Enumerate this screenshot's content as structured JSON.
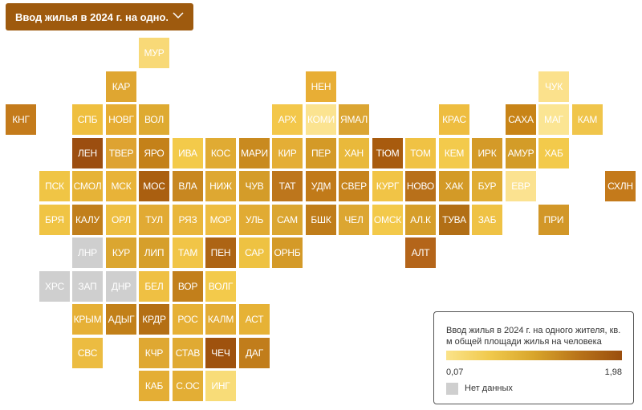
{
  "dropdown": {
    "label": "Ввод жилья в 2024 г. на одно..."
  },
  "legend": {
    "title": "Ввод жилья в 2024 г. на одного жителя, кв. м общей площади жилья на человека",
    "min": "0,07",
    "max": "1,98",
    "no_data": "Нет данных",
    "gradient_colors": [
      "#fbe38a",
      "#f0c94c",
      "#d8a52b",
      "#b9741a",
      "#9a4e0d"
    ],
    "no_data_color": "#cfcfcf"
  },
  "regions": [
    {
      "label": "МУР",
      "color": "#f8d977"
    },
    {
      "label": "КАР",
      "color": "#dfa631"
    },
    {
      "label": "НЕН",
      "color": "#e8ae35"
    },
    {
      "label": "ЧУК",
      "color": "#fbe18c"
    },
    {
      "label": "КНГ",
      "color": "#c47b1b"
    },
    {
      "label": "СПБ",
      "color": "#efbf3f"
    },
    {
      "label": "НОВГ",
      "color": "#e6ad33"
    },
    {
      "label": "ВОЛ",
      "color": "#deaa31"
    },
    {
      "label": "АРХ",
      "color": "#f3c74a"
    },
    {
      "label": "КОМИ",
      "color": "#fbe390"
    },
    {
      "label": "ЯМАЛ",
      "color": "#dba532"
    },
    {
      "label": "КРАС",
      "color": "#eebd40"
    },
    {
      "label": "САХА",
      "color": "#c88417"
    },
    {
      "label": "МАГ",
      "color": "#fbe593"
    },
    {
      "label": "КАМ",
      "color": "#f0c54b"
    },
    {
      "label": "ЛЕН",
      "color": "#9c4e10"
    },
    {
      "label": "ТВЕР",
      "color": "#dea332"
    },
    {
      "label": "ЯРО",
      "color": "#c48119"
    },
    {
      "label": "ИВА",
      "color": "#f3ca4a"
    },
    {
      "label": "КОС",
      "color": "#e0ab33"
    },
    {
      "label": "МАРИ",
      "color": "#c98a1f"
    },
    {
      "label": "КИР",
      "color": "#e4ae36"
    },
    {
      "label": "ПЕР",
      "color": "#d49a27"
    },
    {
      "label": "ХАН",
      "color": "#e9b93b"
    },
    {
      "label": "ТЮМ",
      "color": "#a85b0e"
    },
    {
      "label": "ТОМ",
      "color": "#f0c244"
    },
    {
      "label": "КЕМ",
      "color": "#f3ca4c"
    },
    {
      "label": "ИРК",
      "color": "#d49a28"
    },
    {
      "label": "АМУР",
      "color": "#d39c28"
    },
    {
      "label": "ХАБ",
      "color": "#f3ca4b"
    },
    {
      "label": "ПСК",
      "color": "#f0c545"
    },
    {
      "label": "СМОЛ",
      "color": "#e6b337"
    },
    {
      "label": "МСК",
      "color": "#e8b338"
    },
    {
      "label": "МОС",
      "color": "#aa5f10"
    },
    {
      "label": "ВЛА",
      "color": "#c88720"
    },
    {
      "label": "НИЖ",
      "color": "#dea832"
    },
    {
      "label": "ЧУВ",
      "color": "#d49c29"
    },
    {
      "label": "ТАТ",
      "color": "#bd761c"
    },
    {
      "label": "УДМ",
      "color": "#c17a19"
    },
    {
      "label": "СВЕР",
      "color": "#c6831d"
    },
    {
      "label": "КУРГ",
      "color": "#f1c446"
    },
    {
      "label": "НОВО",
      "color": "#b8701a"
    },
    {
      "label": "ХАК",
      "color": "#d39a27"
    },
    {
      "label": "БУР",
      "color": "#e0ac33"
    },
    {
      "label": "ЕВР",
      "color": "#fbe290"
    },
    {
      "label": "СХЛН",
      "color": "#c47a1b"
    },
    {
      "label": "БРЯ",
      "color": "#f0c444"
    },
    {
      "label": "КАЛУ",
      "color": "#c17f1c"
    },
    {
      "label": "ОРЛ",
      "color": "#eebf42"
    },
    {
      "label": "ТУЛ",
      "color": "#e1aa34"
    },
    {
      "label": "РЯЗ",
      "color": "#e9b63b"
    },
    {
      "label": "МОР",
      "color": "#eebd41"
    },
    {
      "label": "УЛЬ",
      "color": "#e1ab33"
    },
    {
      "label": "САМ",
      "color": "#dba631"
    },
    {
      "label": "БШК",
      "color": "#c07d1a"
    },
    {
      "label": "ЧЕЛ",
      "color": "#dca631"
    },
    {
      "label": "ОМСК",
      "color": "#f3c94a"
    },
    {
      "label": "АЛ.К",
      "color": "#d69e2a"
    },
    {
      "label": "ТУВА",
      "color": "#b26f16"
    },
    {
      "label": "ЗАБ",
      "color": "#efc245"
    },
    {
      "label": "ПРИ",
      "color": "#d29728"
    },
    {
      "label": "ЛНР",
      "color": "#cfcfcf"
    },
    {
      "label": "КУР",
      "color": "#dba630"
    },
    {
      "label": "ЛИП",
      "color": "#d69f2b"
    },
    {
      "label": "ТАМ",
      "color": "#f1c547"
    },
    {
      "label": "ПЕН",
      "color": "#ad6414"
    },
    {
      "label": "САР",
      "color": "#eec242"
    },
    {
      "label": "ОРНБ",
      "color": "#d49a28"
    },
    {
      "label": "АЛТ",
      "color": "#b4651a"
    },
    {
      "label": "ХРС",
      "color": "#cfcfcf"
    },
    {
      "label": "ЗАП",
      "color": "#cfcfcf"
    },
    {
      "label": "ДНР",
      "color": "#cfcfcf"
    },
    {
      "label": "БЕЛ",
      "color": "#efc043"
    },
    {
      "label": "ВОР",
      "color": "#c27f1b"
    },
    {
      "label": "ВОЛГ",
      "color": "#f3ca4b"
    },
    {
      "label": "КРЫМ",
      "color": "#e6b036"
    },
    {
      "label": "АДЫГ",
      "color": "#c28019"
    },
    {
      "label": "КРДР",
      "color": "#b46f14"
    },
    {
      "label": "РОС",
      "color": "#e6b036"
    },
    {
      "label": "КАЛМ",
      "color": "#e3ac35"
    },
    {
      "label": "АСТ",
      "color": "#e6b236"
    },
    {
      "label": "СВС",
      "color": "#ecbc41"
    },
    {
      "label": "КЧР",
      "color": "#dfa832"
    },
    {
      "label": "СТАВ",
      "color": "#e0aa33"
    },
    {
      "label": "ЧЕЧ",
      "color": "#9f520e"
    },
    {
      "label": "ДАГ",
      "color": "#c17d1b"
    },
    {
      "label": "КАБ",
      "color": "#e4ae35"
    },
    {
      "label": "С.ОС",
      "color": "#e3ae35"
    },
    {
      "label": "ИНГ",
      "color": "#f8dc78"
    }
  ]
}
